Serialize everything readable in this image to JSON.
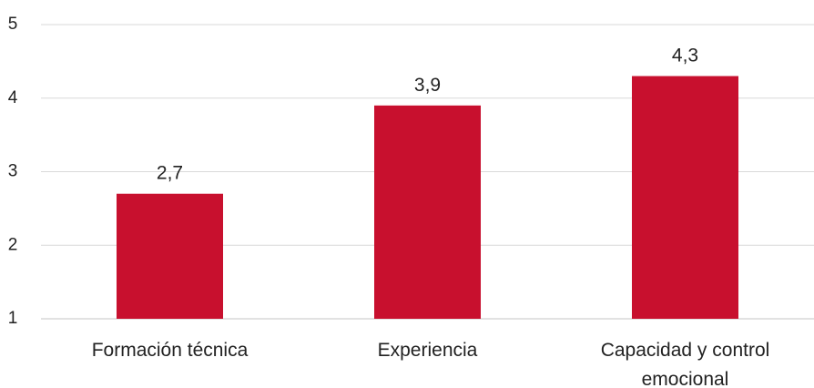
{
  "chart_data": {
    "type": "bar",
    "categories": [
      "Formación técnica",
      "Experiencia",
      "Capacidad y control emocional"
    ],
    "category_lines": [
      [
        "Formación técnica"
      ],
      [
        "Experiencia"
      ],
      [
        "Capacidad y control",
        "emocional"
      ]
    ],
    "values": [
      2.7,
      3.9,
      4.3
    ],
    "data_labels": [
      "2,7",
      "3,9",
      "4,3"
    ],
    "ylim": [
      1,
      5
    ],
    "yticks": [
      1,
      2,
      3,
      4,
      5
    ],
    "ytick_labels": [
      "1",
      "2",
      "3",
      "4",
      "5"
    ],
    "grid": true,
    "legend": "none",
    "title": "",
    "xlabel": "",
    "ylabel": "",
    "bar_color": "#c8102e",
    "grid_color": "#d9d9d9",
    "text_color": "#222222"
  }
}
